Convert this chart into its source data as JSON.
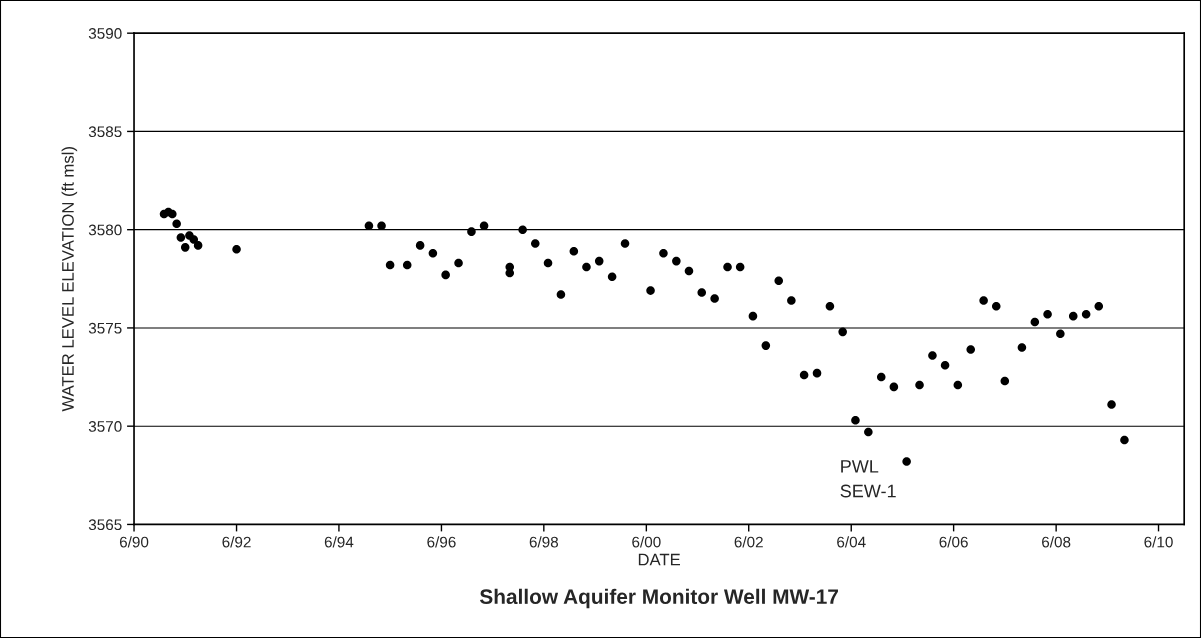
{
  "chart_data": {
    "type": "scatter",
    "title": "Shallow Aquifer Monitor Well MW-17",
    "xlabel": "DATE",
    "ylabel": "WATER LEVEL ELEVATION (ft msl)",
    "series": [
      {
        "color": "#000000",
        "marker": "circle",
        "x": [
          "1991-01",
          "1991-02",
          "1991-03",
          "1991-04",
          "1991-05",
          "1991-07",
          "1991-06",
          "1991-08",
          "1991-09",
          "1992-06",
          "1995-01",
          "1995-04",
          "1995-06",
          "1995-10",
          "1996-01",
          "1996-04",
          "1996-07",
          "1996-10",
          "1997-01",
          "1997-04",
          "1997-10",
          "1997-10",
          "1998-01",
          "1998-04",
          "1998-07",
          "1998-10",
          "1999-01",
          "1999-04",
          "1999-07",
          "1999-10",
          "2000-01",
          "2000-07",
          "2000-10",
          "2001-01",
          "2001-04",
          "2001-07",
          "2001-10",
          "2002-01",
          "2002-04",
          "2002-07",
          "2002-10",
          "2003-01",
          "2003-04",
          "2003-07",
          "2003-10",
          "2004-01",
          "2004-04",
          "2004-07",
          "2004-10",
          "2005-01",
          "2005-04",
          "2005-07",
          "2005-10",
          "2006-01",
          "2006-04",
          "2006-07",
          "2006-10",
          "2007-01",
          "2007-04",
          "2007-06",
          "2007-10",
          "2008-01",
          "2008-04",
          "2008-07",
          "2008-10",
          "2009-01",
          "2009-04",
          "2009-07",
          "2009-10"
        ],
        "values": [
          3580.8,
          3580.9,
          3580.8,
          3580.3,
          3579.6,
          3579.7,
          3579.1,
          3579.5,
          3579.2,
          3579.0,
          3580.2,
          3580.2,
          3578.2,
          3578.2,
          3579.2,
          3578.8,
          3577.7,
          3578.3,
          3579.9,
          3580.2,
          3578.1,
          3577.8,
          3580.0,
          3579.3,
          3578.3,
          3576.7,
          3578.9,
          3578.1,
          3578.4,
          3577.6,
          3579.3,
          3576.9,
          3578.8,
          3578.4,
          3577.9,
          3576.8,
          3576.5,
          3578.1,
          3578.1,
          3575.6,
          3574.1,
          3577.4,
          3576.4,
          3572.6,
          3572.7,
          3576.1,
          3574.8,
          3570.3,
          3569.7,
          3572.5,
          3572.0,
          3568.2,
          3572.1,
          3573.6,
          3573.1,
          3572.1,
          3573.9,
          3576.4,
          3576.1,
          3572.3,
          3574.0,
          3575.3,
          3575.7,
          3574.7,
          3575.6,
          3575.7,
          3576.1,
          3571.1,
          3569.3
        ]
      }
    ],
    "xlim": [
      "1990-06-01",
      "2010-12-01"
    ],
    "xticks": [
      {
        "value": "1990-06-01",
        "label": "6/90"
      },
      {
        "value": "1992-06-01",
        "label": "6/92"
      },
      {
        "value": "1994-06-01",
        "label": "6/94"
      },
      {
        "value": "1996-06-01",
        "label": "6/96"
      },
      {
        "value": "1998-06-01",
        "label": "6/98"
      },
      {
        "value": "2000-06-01",
        "label": "6/00"
      },
      {
        "value": "2002-06-01",
        "label": "6/02"
      },
      {
        "value": "2004-06-01",
        "label": "6/04"
      },
      {
        "value": "2006-06-01",
        "label": "6/06"
      },
      {
        "value": "2008-06-01",
        "label": "6/08"
      },
      {
        "value": "2010-06-01",
        "label": "6/10"
      }
    ],
    "ylim": [
      3565,
      3590
    ],
    "yticks": [
      3565,
      3570,
      3575,
      3580,
      3585,
      3590
    ],
    "grid": "y",
    "legend": false,
    "annotations": [
      "PWL\nSEW-1"
    ]
  }
}
